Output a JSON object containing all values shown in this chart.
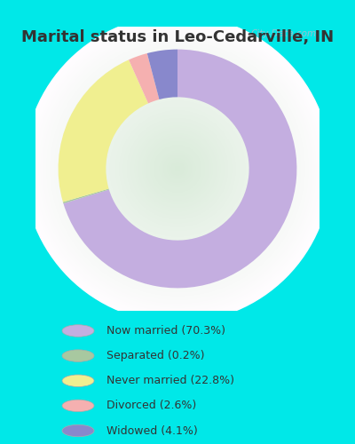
{
  "title": "Marital status in Leo-Cedarville, IN",
  "labels": [
    "Now married",
    "Separated",
    "Never married",
    "Divorced",
    "Widowed"
  ],
  "values": [
    70.3,
    0.2,
    22.8,
    2.6,
    4.1
  ],
  "colors": [
    "#c4aee0",
    "#a8c8a0",
    "#f0ef90",
    "#f5b0b0",
    "#8888cc"
  ],
  "legend_labels": [
    "Now married (70.3%)",
    "Separated (0.2%)",
    "Never married (22.8%)",
    "Divorced (2.6%)",
    "Widowed (4.1%)"
  ],
  "legend_colors": [
    "#c4aee0",
    "#a8c8a0",
    "#f0ef90",
    "#f5b0b0",
    "#8888cc"
  ],
  "bg_outer": "#00e8e8",
  "title_fontsize": 13,
  "watermark": "City-Data.com",
  "donut_width": 0.42,
  "text_color": "#333333"
}
